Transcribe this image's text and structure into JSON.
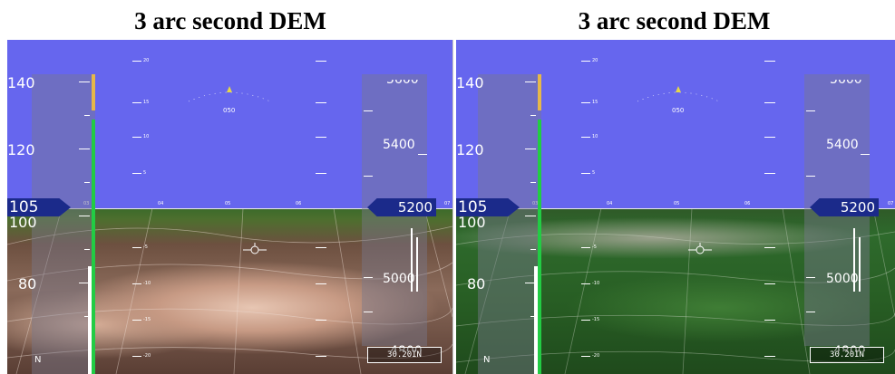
{
  "captions": {
    "left": "3 arc second DEM",
    "right": "3 arc second DEM"
  },
  "hud": {
    "speed_ticks": [
      "140",
      "120",
      "100",
      "80"
    ],
    "speed_current": "105",
    "altitude_ticks": [
      "5600",
      "5400",
      "5000",
      "4800"
    ],
    "altitude_current": "5200",
    "heading_readout": "050",
    "baro_setting": "30.20IN",
    "pitch_labels": [
      "20",
      "15",
      "10",
      "5",
      "-5",
      "-10",
      "-15",
      "-20"
    ],
    "heading_scale": [
      "03",
      "04",
      "05",
      "06",
      "07"
    ],
    "north_marker": "N"
  },
  "colors": {
    "sky": "#6666ee",
    "tape": "#78788c",
    "speed_green": "#22cc44",
    "speed_amber": "#e6b84a",
    "readout_box": "#1b2a8a"
  }
}
